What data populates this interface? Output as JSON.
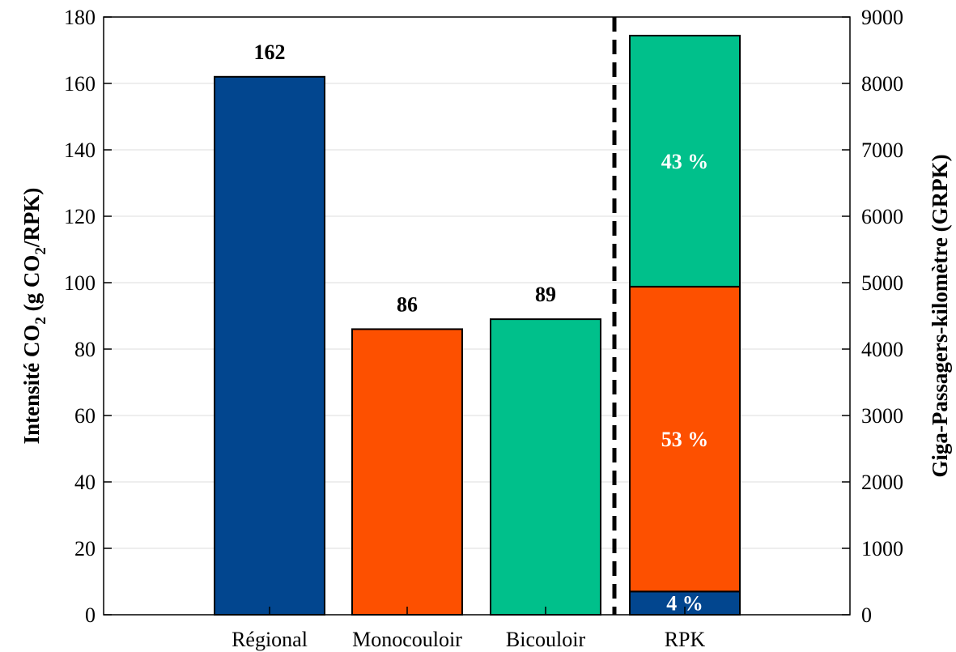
{
  "chart_data": {
    "type": "bar",
    "categories": [
      "Régional",
      "Monocouloir",
      "Bicouloir",
      "RPK"
    ],
    "left_axis": {
      "label_parts": [
        "Intensité CO",
        "2",
        " (g CO",
        "2",
        "/RPK)"
      ],
      "ylim": [
        0,
        180
      ],
      "ticks": [
        0,
        20,
        40,
        60,
        80,
        100,
        120,
        140,
        160,
        180
      ]
    },
    "right_axis": {
      "label": "Giga-Passagers-kilomètre (GRPK)",
      "ylim": [
        0,
        9000
      ],
      "ticks": [
        0,
        1000,
        2000,
        3000,
        4000,
        5000,
        6000,
        7000,
        8000,
        9000
      ]
    },
    "bars": [
      {
        "category": "Régional",
        "value": 162,
        "label": "162",
        "color": "#02468f"
      },
      {
        "category": "Monocouloir",
        "value": 86,
        "label": "86",
        "color": "#fd5000"
      },
      {
        "category": "Bicouloir",
        "value": 89,
        "label": "89",
        "color": "#00c08b"
      }
    ],
    "stacked_bar": {
      "category": "RPK",
      "axis": "right",
      "segments": [
        {
          "value": 350,
          "label": "4 %",
          "color": "#02468f"
        },
        {
          "value": 4590,
          "label": "53 %",
          "color": "#fd5000"
        },
        {
          "value": 3780,
          "label": "43 %",
          "color": "#00c08b"
        }
      ]
    },
    "grid": true,
    "separator": "dashed vertical line between Bicouloir and RPK"
  }
}
